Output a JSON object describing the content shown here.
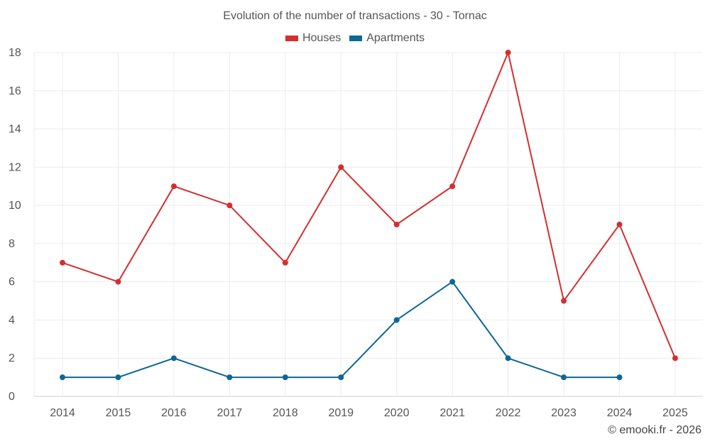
{
  "chart_data": {
    "type": "line",
    "title": "Evolution of the number of transactions - 30 - Tornac",
    "categories": [
      "2014",
      "2015",
      "2016",
      "2017",
      "2018",
      "2019",
      "2020",
      "2021",
      "2022",
      "2023",
      "2024",
      "2025"
    ],
    "ylim": [
      0,
      18
    ],
    "yticks": [
      0,
      2,
      4,
      6,
      8,
      10,
      12,
      14,
      16,
      18
    ],
    "grid": true,
    "legend_position": "top-center",
    "series": [
      {
        "name": "Houses",
        "color": "#d32f2f",
        "values": [
          7,
          6,
          11,
          10,
          7,
          12,
          9,
          11,
          18,
          5,
          9,
          2
        ]
      },
      {
        "name": "Apartments",
        "color": "#0d6797",
        "values": [
          1,
          1,
          2,
          1,
          1,
          1,
          4,
          6,
          2,
          1,
          1,
          null
        ]
      }
    ]
  },
  "credit": "© emooki.fr - 2026"
}
